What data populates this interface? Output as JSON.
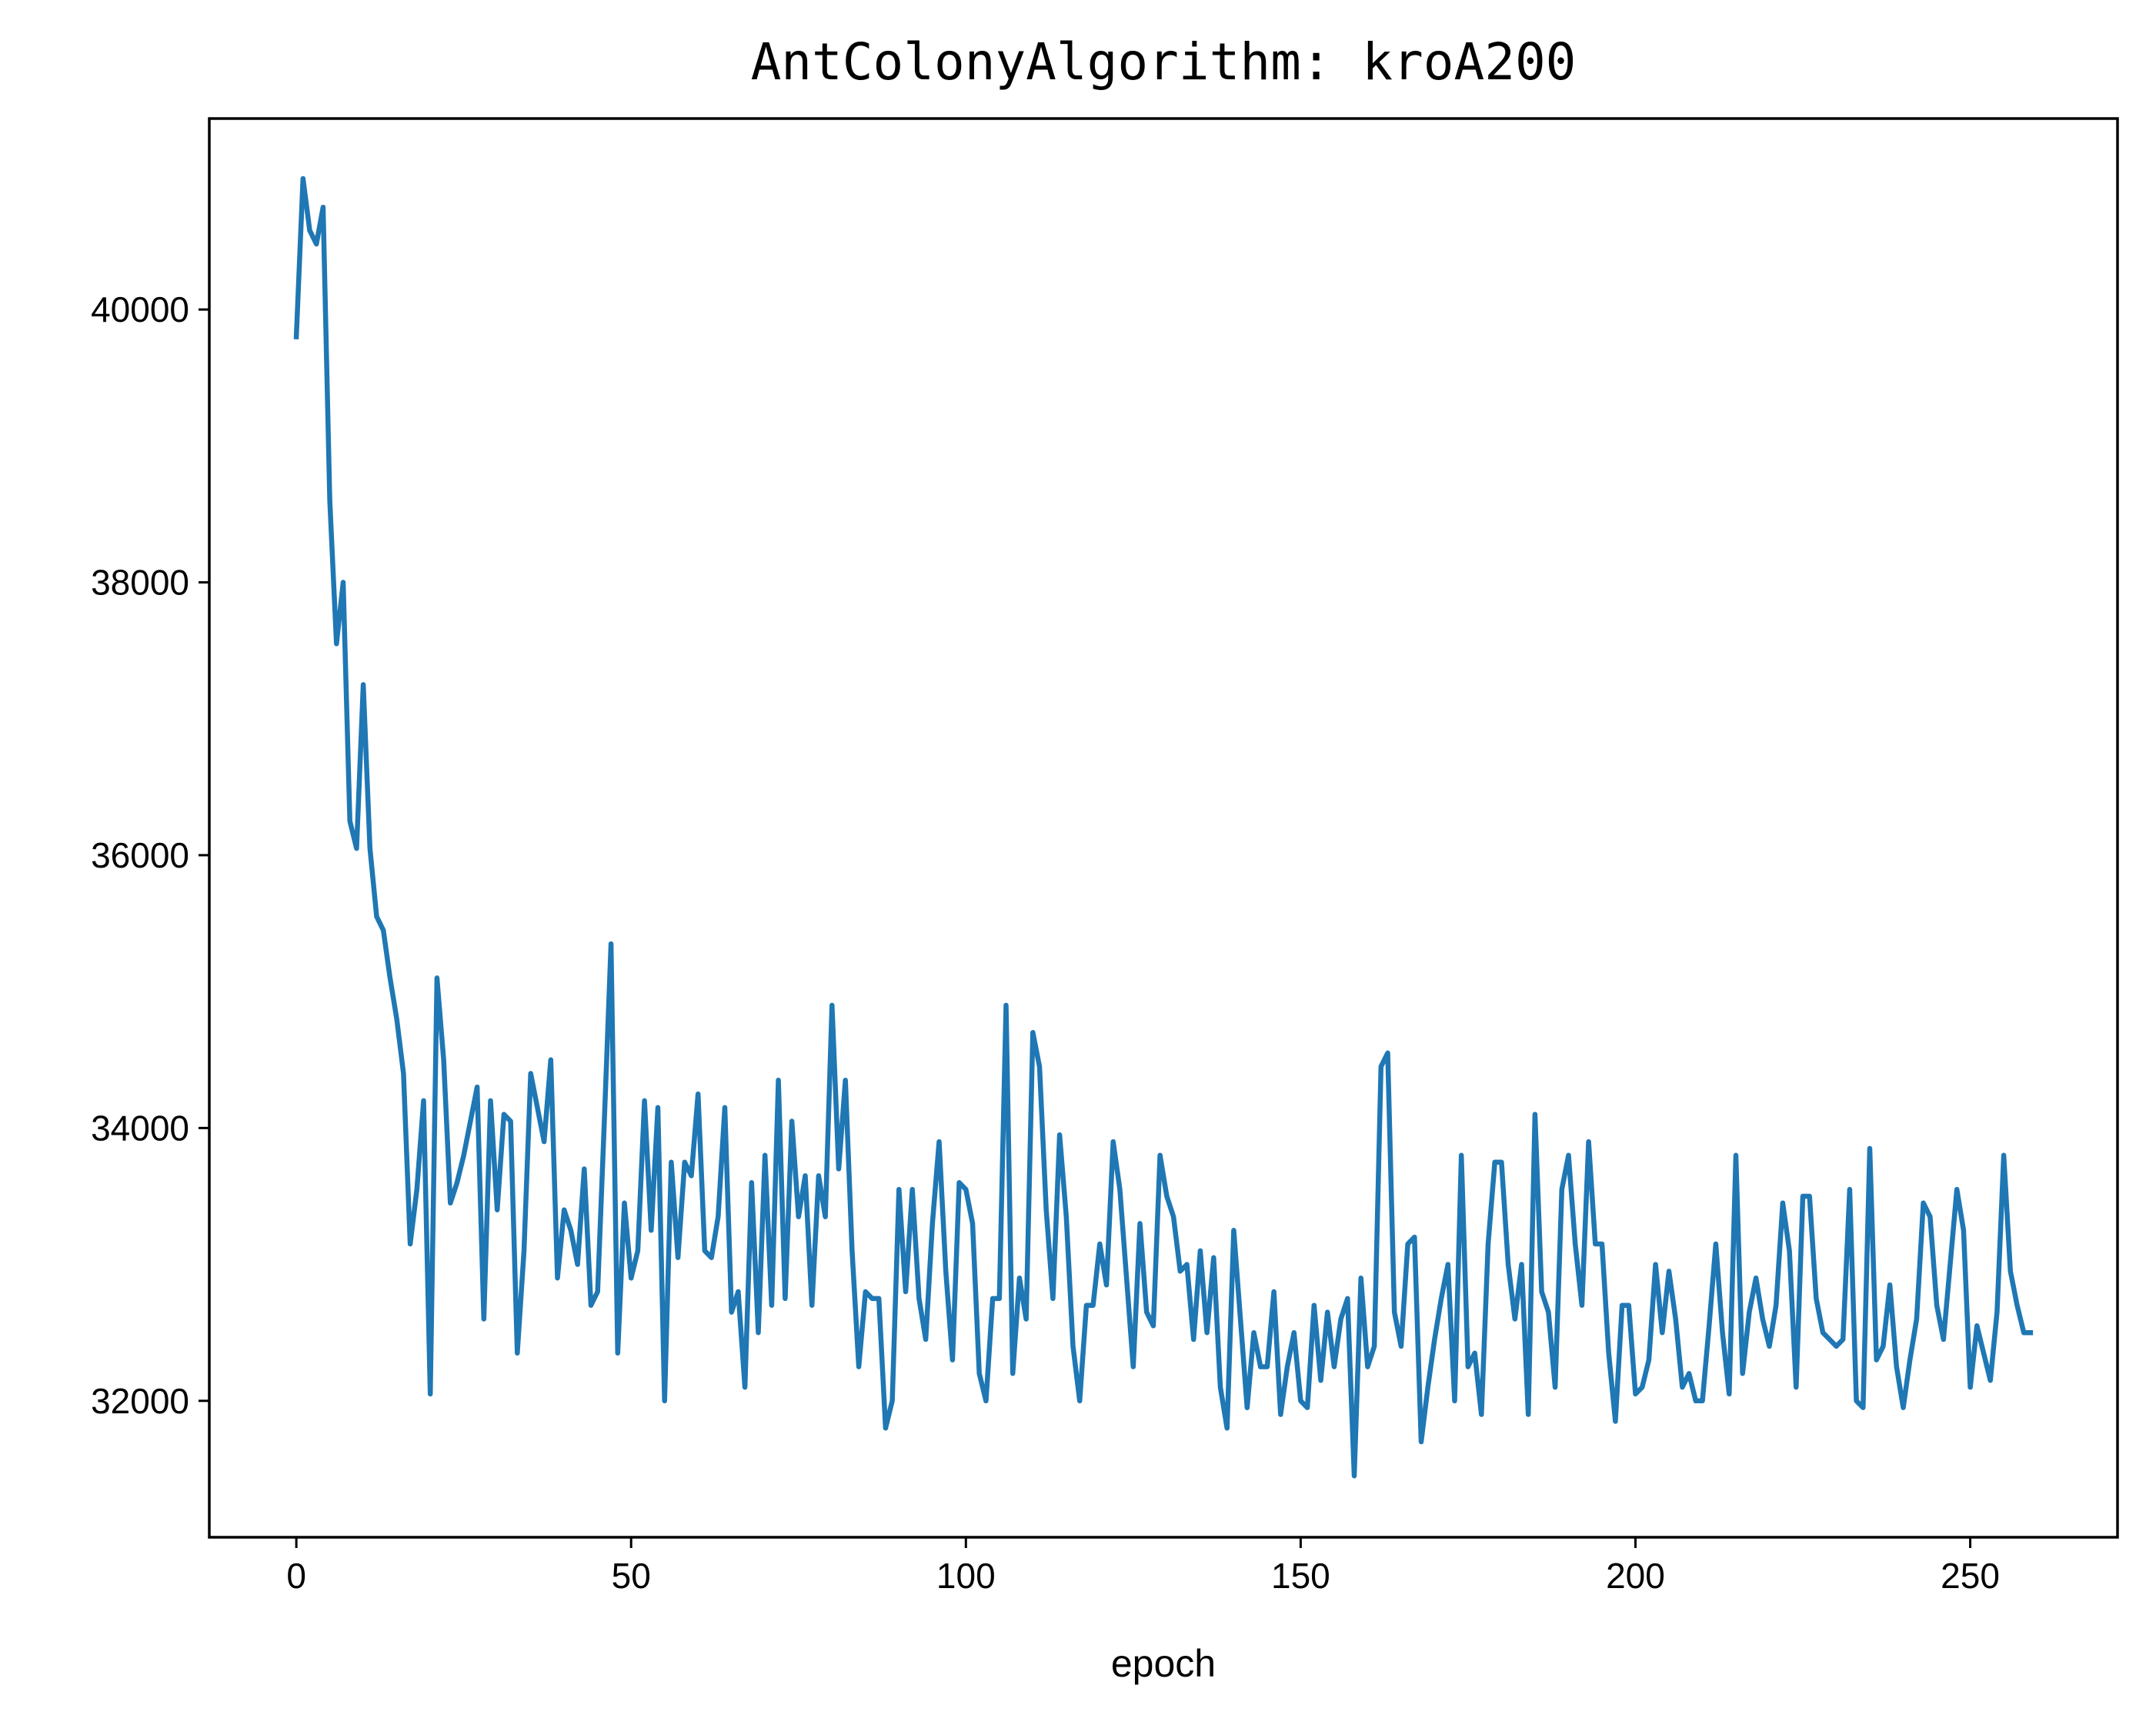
{
  "colors": {
    "line": "#1f77b4",
    "axes": "#000000",
    "background": "#ffffff"
  },
  "chart_data": {
    "type": "line",
    "title": "AntColonyAlgorithm: kroA200",
    "xlabel": "epoch",
    "ylabel": "",
    "xlim": [
      -13,
      272
    ],
    "ylim": [
      31000,
      41400
    ],
    "grid": false,
    "legend": "none",
    "xticks": [
      0,
      50,
      100,
      150,
      200,
      250
    ],
    "yticks": [
      32000,
      34000,
      36000,
      38000,
      40000
    ],
    "series": [
      {
        "values": [
          39800,
          40960,
          40580,
          40480,
          40750,
          38600,
          37550,
          38000,
          36250,
          36050,
          37250,
          36050,
          35550,
          35450,
          35100,
          34800,
          34400,
          33150,
          33550,
          34200,
          32050,
          35100,
          34500,
          33450,
          33600,
          33800,
          34050,
          34300,
          32600,
          34200,
          33400,
          34100,
          34050,
          32350,
          33100,
          34400,
          34150,
          33900,
          34500,
          32900,
          33400,
          33250,
          33000,
          33700,
          32700,
          32800,
          34050,
          35350,
          32350,
          33450,
          32900,
          33100,
          34200,
          33250,
          34150,
          32000,
          33750,
          33050,
          33750,
          33650,
          34250,
          33100,
          33050,
          33350,
          34150,
          32650,
          32800,
          32100,
          33600,
          32500,
          33800,
          32700,
          34350,
          32750,
          34050,
          33350,
          33650,
          32700,
          33650,
          33350,
          34900,
          33700,
          34350,
          33100,
          32250,
          32800,
          32750,
          32750,
          31800,
          32000,
          33550,
          32800,
          33550,
          32750,
          32450,
          33300,
          33900,
          32950,
          32300,
          33600,
          33550,
          33300,
          32200,
          32000,
          32750,
          32750,
          34900,
          32200,
          32900,
          32600,
          34700,
          34450,
          33400,
          32750,
          33950,
          33350,
          32400,
          32000,
          32700,
          32700,
          33150,
          32850,
          33900,
          33550,
          32900,
          32250,
          33300,
          32650,
          32550,
          33800,
          33500,
          33350,
          32950,
          33000,
          32450,
          33100,
          32500,
          33050,
          32100,
          31800,
          33250,
          32600,
          31950,
          32500,
          32250,
          32250,
          32800,
          31900,
          32250,
          32500,
          32000,
          31950,
          32700,
          32150,
          32650,
          32250,
          32600,
          32750,
          31450,
          32900,
          32250,
          32400,
          34450,
          34550,
          32650,
          32400,
          33150,
          33200,
          31700,
          32100,
          32450,
          32750,
          33000,
          32000,
          33800,
          32250,
          32350,
          31900,
          33150,
          33750,
          33750,
          33000,
          32600,
          33000,
          31900,
          34100,
          32800,
          32650,
          32100,
          33550,
          33800,
          33150,
          32700,
          33900,
          33150,
          33150,
          32350,
          31850,
          32700,
          32700,
          32050,
          32100,
          32300,
          33000,
          32500,
          32950,
          32600,
          32100,
          32200,
          32000,
          32000,
          32550,
          33150,
          32500,
          32050,
          33800,
          32200,
          32650,
          32900,
          32600,
          32400,
          32700,
          33450,
          33100,
          32100,
          33500,
          33500,
          32750,
          32500,
          32450,
          32400,
          32450,
          33550,
          32000,
          31950,
          33850,
          32300,
          32400,
          32850,
          32250,
          31950,
          32300,
          32600,
          33450,
          33350,
          32700,
          32450,
          33000,
          33550,
          33250,
          32100,
          32550,
          32350,
          32150,
          32650,
          33800,
          32950,
          32700,
          32500,
          32500
        ]
      }
    ]
  }
}
